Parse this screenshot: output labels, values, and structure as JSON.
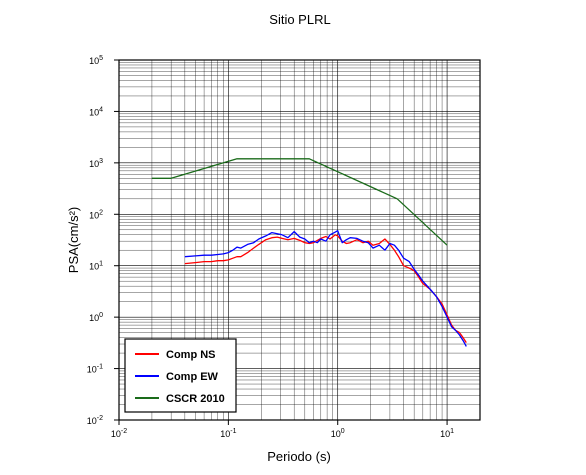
{
  "chart_data": {
    "type": "line",
    "title": "Sitio PLRL",
    "xlabel": "Periodo (s)",
    "ylabel": "PSA(cm/s²)",
    "xscale": "log",
    "yscale": "log",
    "xlim": [
      0.01,
      20
    ],
    "ylim": [
      0.01,
      100000
    ],
    "grid": true,
    "legend_position": "bottom-left",
    "x_ticks": [
      {
        "base": "10",
        "exp": "-2",
        "value": 0.01
      },
      {
        "base": "10",
        "exp": "-1",
        "value": 0.1
      },
      {
        "base": "10",
        "exp": "0",
        "value": 1
      },
      {
        "base": "10",
        "exp": "1",
        "value": 10
      }
    ],
    "y_ticks": [
      {
        "base": "10",
        "exp": "-2",
        "value": 0.01
      },
      {
        "base": "10",
        "exp": "-1",
        "value": 0.1
      },
      {
        "base": "10",
        "exp": "0",
        "value": 1
      },
      {
        "base": "10",
        "exp": "1",
        "value": 10
      },
      {
        "base": "10",
        "exp": "2",
        "value": 100
      },
      {
        "base": "10",
        "exp": "3",
        "value": 1000
      },
      {
        "base": "10",
        "exp": "4",
        "value": 10000
      },
      {
        "base": "10",
        "exp": "5",
        "value": 100000
      }
    ],
    "series": [
      {
        "name": "Comp NS",
        "color": "#ff0000",
        "x": [
          0.04,
          0.05,
          0.06,
          0.07,
          0.08,
          0.09,
          0.1,
          0.11,
          0.12,
          0.13,
          0.15,
          0.17,
          0.19,
          0.22,
          0.25,
          0.28,
          0.31,
          0.35,
          0.4,
          0.45,
          0.5,
          0.55,
          0.6,
          0.65,
          0.7,
          0.78,
          0.85,
          0.95,
          1.0,
          1.1,
          1.2,
          1.3,
          1.5,
          1.7,
          1.9,
          2.1,
          2.4,
          2.7,
          3.0,
          3.3,
          3.6,
          4.0,
          4.5,
          5.0,
          5.5,
          6.0,
          7.0,
          8.0,
          9.0,
          10.0,
          11.0,
          12.0,
          13.0,
          14.0,
          15.0
        ],
        "y": [
          11,
          11.5,
          12,
          12,
          12.5,
          12.5,
          13,
          14,
          15,
          15,
          18,
          22,
          26,
          32,
          35,
          36,
          34,
          32,
          34,
          31,
          28,
          27,
          28,
          31,
          34,
          37,
          33,
          40,
          38,
          30,
          27,
          28,
          32,
          28,
          30,
          25,
          27,
          33,
          26,
          20,
          15,
          10,
          9,
          8,
          6,
          4.5,
          3.5,
          2.5,
          1.8,
          1.1,
          0.7,
          0.55,
          0.5,
          0.4,
          0.32
        ]
      },
      {
        "name": "Comp EW",
        "color": "#0000ff",
        "x": [
          0.04,
          0.05,
          0.06,
          0.07,
          0.08,
          0.09,
          0.1,
          0.11,
          0.12,
          0.13,
          0.15,
          0.17,
          0.19,
          0.22,
          0.25,
          0.28,
          0.31,
          0.35,
          0.4,
          0.45,
          0.5,
          0.55,
          0.6,
          0.65,
          0.7,
          0.78,
          0.85,
          0.95,
          1.0,
          1.1,
          1.2,
          1.3,
          1.5,
          1.7,
          1.9,
          2.1,
          2.4,
          2.7,
          3.0,
          3.3,
          3.6,
          4.0,
          4.5,
          5.0,
          5.5,
          6.0,
          7.0,
          8.0,
          9.0,
          10.0,
          11.0,
          12.0,
          13.0,
          14.0,
          15.0
        ],
        "y": [
          15,
          15.5,
          16,
          16,
          16.5,
          17,
          18,
          20,
          23,
          22,
          26,
          28,
          33,
          38,
          44,
          42,
          40,
          35,
          46,
          36,
          33,
          28,
          30,
          28,
          33,
          30,
          40,
          45,
          48,
          28,
          32,
          35,
          34,
          30,
          28,
          22,
          25,
          20,
          27,
          25,
          20,
          14,
          12,
          8.5,
          6.5,
          5,
          3.5,
          2.5,
          1.6,
          1.0,
          0.65,
          0.55,
          0.45,
          0.35,
          0.27
        ]
      },
      {
        "name": "CSCR 2010",
        "color": "#1a6b1a",
        "x": [
          0.02,
          0.03,
          0.12,
          0.55,
          3.5,
          10.0
        ],
        "y": [
          500,
          500,
          1200,
          1200,
          200,
          25
        ]
      }
    ]
  }
}
